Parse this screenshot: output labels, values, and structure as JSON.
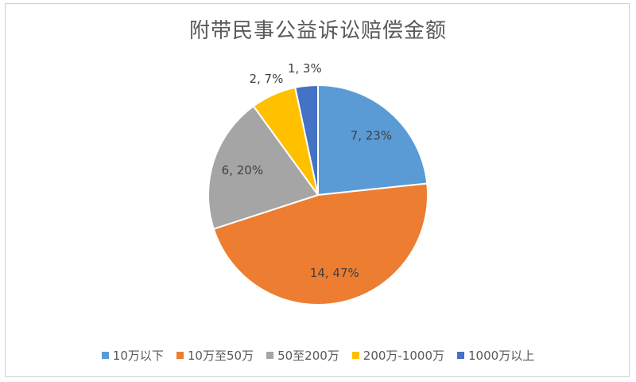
{
  "chart_data": {
    "type": "pie",
    "title": "附带民事公益诉讼赔偿金额",
    "slices": [
      {
        "name": "10万以下",
        "value": 7,
        "percent": "23%",
        "label": "7, 23%",
        "color": "#5b9bd5"
      },
      {
        "name": "10万至50万",
        "value": 14,
        "percent": "47%",
        "label": "14, 47%",
        "color": "#ed7d31"
      },
      {
        "name": "50至200万",
        "value": 6,
        "percent": "20%",
        "label": "6, 20%",
        "color": "#a5a5a5"
      },
      {
        "name": "200万-1000万",
        "value": 2,
        "percent": "7%",
        "label": "2, 7%",
        "color": "#ffc000"
      },
      {
        "name": "1000万以上",
        "value": 1,
        "percent": "3%",
        "label": "1, 3%",
        "color": "#4472c4"
      }
    ],
    "legend_position": "bottom"
  }
}
